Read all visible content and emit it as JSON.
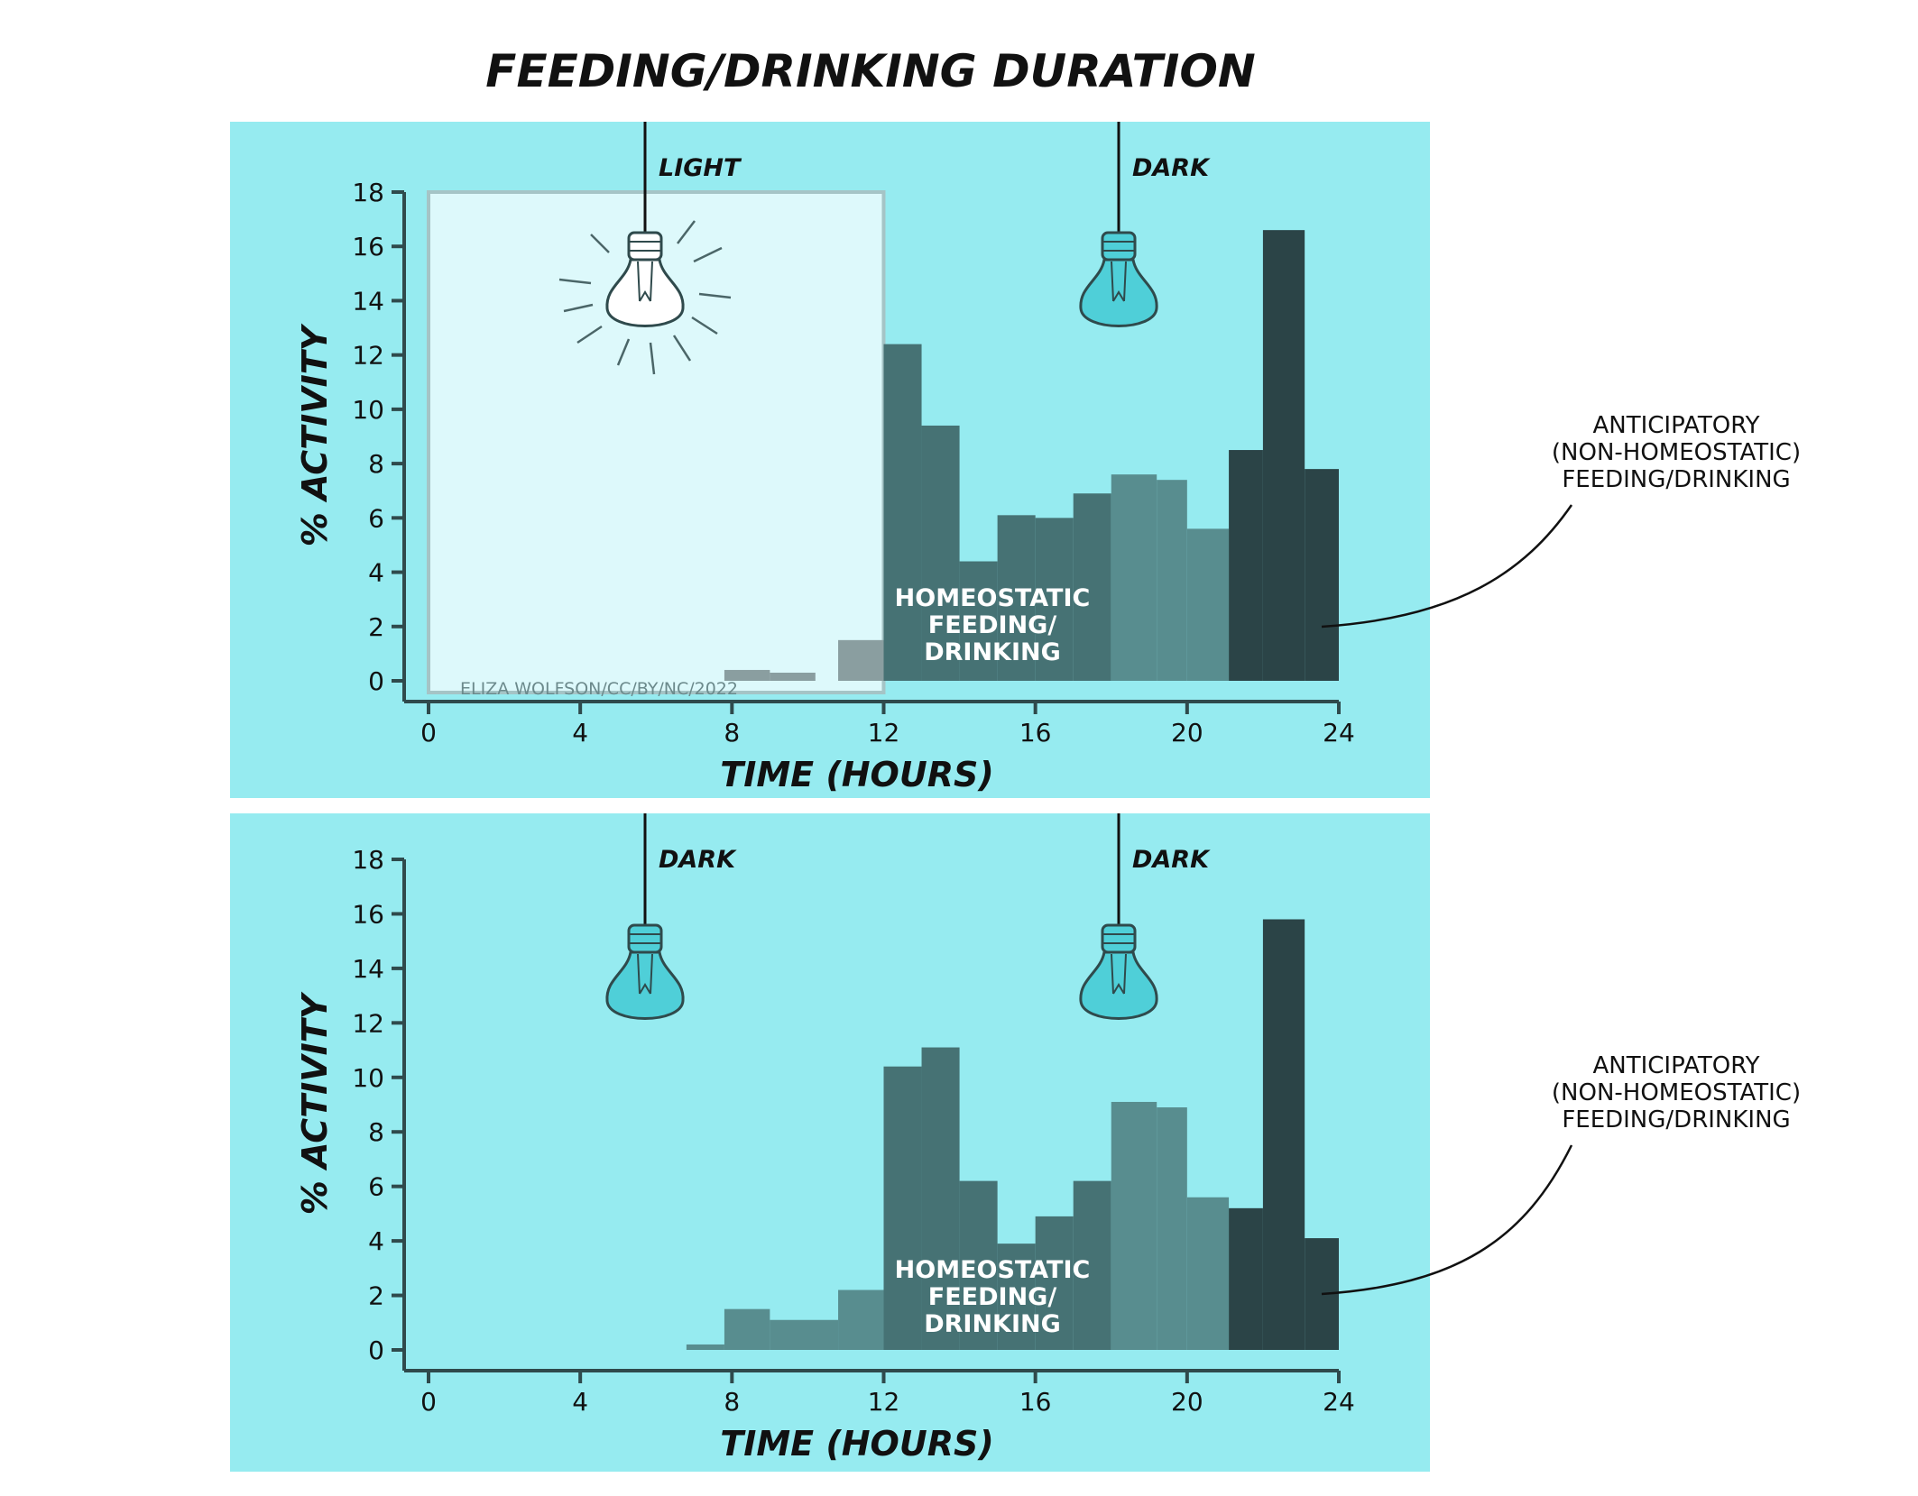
{
  "title": "FEEDING/DRINKING DURATION",
  "colors": {
    "panel": "#96ebf0",
    "light_box": "#ddf9fb",
    "axis": "#2f4a4c",
    "bar_light": "#8a9ea0",
    "bar_mid": "#467274",
    "bar_pale": "#588d8f",
    "bar_dark": "#2b4447",
    "ink": "#111111",
    "bulb_dark": "#4fcfd8",
    "bulb_light": "#ffffff"
  },
  "annotation": "ANTICIPATORY\n(NON-HOMEOSTATIC)\nFEEDING/DRINKING",
  "credit": "ELIZA WOLFSON/CC/BY/NC/2022",
  "chart_data": [
    {
      "type": "bar",
      "xlabel": "TIME (HOURS)",
      "ylabel": "% ACTIVITY",
      "xlim": [
        0,
        24
      ],
      "ylim": [
        0,
        18
      ],
      "xticks": [
        0,
        4,
        8,
        12,
        16,
        20,
        24
      ],
      "yticks": [
        0,
        2,
        4,
        6,
        8,
        10,
        12,
        14,
        16,
        18
      ],
      "bulbs": [
        {
          "label": "LIGHT",
          "state": "light"
        },
        {
          "label": "DARK",
          "state": "dark"
        }
      ],
      "light_period": [
        0,
        12
      ],
      "region_label": "HOMEOSTATIC\nFEEDING/\nDRINKING",
      "bars": [
        {
          "start": 7.8,
          "end": 9.0,
          "value": 0.4,
          "group": "light"
        },
        {
          "start": 9.0,
          "end": 10.2,
          "value": 0.3,
          "group": "light"
        },
        {
          "start": 10.8,
          "end": 12.0,
          "value": 1.5,
          "group": "light"
        },
        {
          "start": 12.0,
          "end": 13.0,
          "value": 12.4,
          "group": "homeostatic"
        },
        {
          "start": 13.0,
          "end": 14.0,
          "value": 9.4,
          "group": "homeostatic"
        },
        {
          "start": 14.0,
          "end": 15.0,
          "value": 4.4,
          "group": "homeostatic"
        },
        {
          "start": 15.0,
          "end": 16.0,
          "value": 6.1,
          "group": "homeostatic"
        },
        {
          "start": 16.0,
          "end": 17.0,
          "value": 6.0,
          "group": "homeostatic"
        },
        {
          "start": 17.0,
          "end": 18.0,
          "value": 6.9,
          "group": "homeostatic"
        },
        {
          "start": 18.0,
          "end": 19.2,
          "value": 7.6,
          "group": "pale"
        },
        {
          "start": 19.2,
          "end": 20.0,
          "value": 7.4,
          "group": "pale"
        },
        {
          "start": 20.0,
          "end": 21.1,
          "value": 5.6,
          "group": "pale"
        },
        {
          "start": 21.1,
          "end": 22.0,
          "value": 8.5,
          "group": "anticipatory"
        },
        {
          "start": 22.0,
          "end": 23.1,
          "value": 16.6,
          "group": "anticipatory"
        },
        {
          "start": 23.1,
          "end": 24.0,
          "value": 7.8,
          "group": "anticipatory"
        }
      ]
    },
    {
      "type": "bar",
      "xlabel": "TIME (HOURS)",
      "ylabel": "% ACTIVITY",
      "xlim": [
        0,
        24
      ],
      "ylim": [
        0,
        18
      ],
      "xticks": [
        0,
        4,
        8,
        12,
        16,
        20,
        24
      ],
      "yticks": [
        0,
        2,
        4,
        6,
        8,
        10,
        12,
        14,
        16,
        18
      ],
      "bulbs": [
        {
          "label": "DARK",
          "state": "dark"
        },
        {
          "label": "DARK",
          "state": "dark"
        }
      ],
      "region_label": "HOMEOSTATIC\nFEEDING/\nDRINKING",
      "bars": [
        {
          "start": 6.8,
          "end": 7.8,
          "value": 0.2,
          "group": "pale"
        },
        {
          "start": 7.8,
          "end": 9.0,
          "value": 1.5,
          "group": "pale"
        },
        {
          "start": 9.0,
          "end": 10.8,
          "value": 1.1,
          "group": "pale"
        },
        {
          "start": 10.8,
          "end": 12.0,
          "value": 2.2,
          "group": "pale"
        },
        {
          "start": 12.0,
          "end": 13.0,
          "value": 10.4,
          "group": "homeostatic"
        },
        {
          "start": 13.0,
          "end": 14.0,
          "value": 11.1,
          "group": "homeostatic"
        },
        {
          "start": 14.0,
          "end": 15.0,
          "value": 6.2,
          "group": "homeostatic"
        },
        {
          "start": 15.0,
          "end": 16.0,
          "value": 3.9,
          "group": "homeostatic"
        },
        {
          "start": 16.0,
          "end": 17.0,
          "value": 4.9,
          "group": "homeostatic"
        },
        {
          "start": 17.0,
          "end": 18.0,
          "value": 6.2,
          "group": "homeostatic"
        },
        {
          "start": 18.0,
          "end": 19.2,
          "value": 9.1,
          "group": "pale"
        },
        {
          "start": 19.2,
          "end": 20.0,
          "value": 8.9,
          "group": "pale"
        },
        {
          "start": 20.0,
          "end": 21.1,
          "value": 5.6,
          "group": "pale"
        },
        {
          "start": 21.1,
          "end": 22.0,
          "value": 5.2,
          "group": "anticipatory"
        },
        {
          "start": 22.0,
          "end": 23.1,
          "value": 15.8,
          "group": "anticipatory"
        },
        {
          "start": 23.1,
          "end": 24.0,
          "value": 4.1,
          "group": "anticipatory"
        }
      ]
    }
  ]
}
